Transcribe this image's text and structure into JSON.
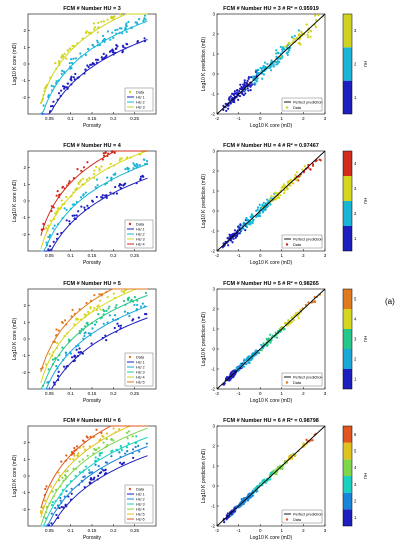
{
  "side_label": "(a)",
  "colors": {
    "hu3": [
      "#1f1fbf",
      "#19b5d6",
      "#cfd31f"
    ],
    "hu4": [
      "#1f1fbf",
      "#19b5d6",
      "#d6d61e",
      "#d42a1e"
    ],
    "hu5": [
      "#1f1fbf",
      "#1aa8d8",
      "#25c88a",
      "#d6d61e",
      "#e07a1e"
    ],
    "hu6": [
      "#1f1fbf",
      "#1a84d8",
      "#1ad0c0",
      "#7fd64a",
      "#e0c21e",
      "#e0561e"
    ]
  },
  "chart_data": [
    {
      "type": "scatter",
      "title": "FCM # Number HU = 3",
      "xlabel": "Porosity",
      "ylabel": "Log10 K core (mD)",
      "xlim": [
        0,
        0.3
      ],
      "ylim": [
        -3,
        3
      ],
      "xticks": [
        "0.05",
        "0.1",
        "0.15",
        "0.2",
        "0.25"
      ],
      "yticks": [
        "-2",
        "-1",
        "0",
        "1",
        "2"
      ],
      "legend": "bottom-right",
      "legend_entries": [
        "Data",
        "HU 1",
        "HU 2",
        "HU 3"
      ],
      "series": [
        {
          "name": "HU 1",
          "a": 1.2,
          "b": -1.1
        },
        {
          "name": "HU 2",
          "a": 1.2,
          "b": 0.0
        },
        {
          "name": "HU 3",
          "a": 1.2,
          "b": 0.95
        }
      ]
    },
    {
      "type": "scatter",
      "title": "FCM # Number HU = 3 #  R² = 0.95919",
      "xlabel": "Log10 K core (mD)",
      "ylabel": "Log10 K prediction (mD)",
      "xlim": [
        -2,
        3
      ],
      "ylim": [
        -2,
        3
      ],
      "xticks": [
        "-2",
        "-1",
        "0",
        "1",
        "2",
        "3"
      ],
      "yticks": [
        "-2",
        "-1",
        "0",
        "1",
        "2",
        "3"
      ],
      "legend": "bottom-right",
      "legend_entries": [
        "Perfect prediction",
        "Data"
      ],
      "colorbar_label": "HU",
      "colorbar_ticks": [
        "1",
        "2",
        "3"
      ],
      "noise": 0.45
    },
    {
      "type": "scatter",
      "title": "FCM # Number HU = 4",
      "xlabel": "Porosity",
      "ylabel": "Log10 K core (mD)",
      "xlim": [
        0,
        0.3
      ],
      "ylim": [
        -3,
        3
      ],
      "xticks": [
        "0.05",
        "0.1",
        "0.15",
        "0.2",
        "0.25"
      ],
      "yticks": [
        "-2",
        "-1",
        "0",
        "1",
        "2"
      ],
      "legend": "bottom-right",
      "legend_entries": [
        "Data",
        "HU 1",
        "HU 2",
        "HU 3",
        "HU 4"
      ],
      "series": [
        {
          "name": "HU 1",
          "a": 1.2,
          "b": -1.2
        },
        {
          "name": "HU 2",
          "a": 1.2,
          "b": -0.35
        },
        {
          "name": "HU 3",
          "a": 1.2,
          "b": 0.45
        },
        {
          "name": "HU 4",
          "a": 1.2,
          "b": 1.25
        }
      ]
    },
    {
      "type": "scatter",
      "title": "FCM # Number HU = 4 #  R² = 0.97467",
      "xlabel": "Log10 K core (mD)",
      "ylabel": "Log10 K prediction (mD)",
      "xlim": [
        -2,
        3
      ],
      "ylim": [
        -2,
        3
      ],
      "xticks": [
        "-2",
        "-1",
        "0",
        "1",
        "2",
        "3"
      ],
      "yticks": [
        "-2",
        "-1",
        "0",
        "1",
        "2",
        "3"
      ],
      "legend": "bottom-right",
      "legend_entries": [
        "Perfect prediction",
        "Data"
      ],
      "colorbar_label": "HU",
      "colorbar_ticks": [
        "1",
        "2",
        "3",
        "4"
      ],
      "noise": 0.3
    },
    {
      "type": "scatter",
      "title": "FCM # Number HU = 5",
      "xlabel": "Porosity",
      "ylabel": "Log10 K core (mD)",
      "xlim": [
        0,
        0.3
      ],
      "ylim": [
        -3,
        3
      ],
      "xticks": [
        "0.05",
        "0.1",
        "0.15",
        "0.2",
        "0.25"
      ],
      "yticks": [
        "-2",
        "-1",
        "0",
        "1",
        "2"
      ],
      "legend": "bottom-right",
      "legend_entries": [
        "Data",
        "HU 1",
        "HU 2",
        "HU 3",
        "HU 4",
        "HU 5"
      ],
      "series": [
        {
          "name": "HU 1",
          "a": 1.2,
          "b": -1.3
        },
        {
          "name": "HU 2",
          "a": 1.2,
          "b": -0.6
        },
        {
          "name": "HU 3",
          "a": 1.2,
          "b": 0.05
        },
        {
          "name": "HU 4",
          "a": 1.2,
          "b": 0.7
        },
        {
          "name": "HU 5",
          "a": 1.2,
          "b": 1.35
        }
      ]
    },
    {
      "type": "scatter",
      "title": "FCM # Number HU = 5 #  R² = 0.98265",
      "xlabel": "Log10 K core (mD)",
      "ylabel": "Log10 K prediction (mD)",
      "xlim": [
        -2,
        3
      ],
      "ylim": [
        -2,
        3
      ],
      "xticks": [
        "-2",
        "-1",
        "0",
        "1",
        "2",
        "3"
      ],
      "yticks": [
        "-2",
        "-1",
        "0",
        "1",
        "2",
        "3"
      ],
      "legend": "bottom-right",
      "legend_entries": [
        "Perfect prediction",
        "Data"
      ],
      "colorbar_label": "HU",
      "colorbar_ticks": [
        "1",
        "2",
        "3",
        "4",
        "5"
      ],
      "noise": 0.22
    },
    {
      "type": "scatter",
      "title": "FCM # Number HU = 6",
      "xlabel": "Porosity",
      "ylabel": "Log10 K core (mD)",
      "xlim": [
        0,
        0.3
      ],
      "ylim": [
        -3,
        3
      ],
      "xticks": [
        "0.05",
        "0.1",
        "0.15",
        "0.2",
        "0.25"
      ],
      "yticks": [
        "-2",
        "-1",
        "0",
        "1",
        "2"
      ],
      "legend": "bottom-right",
      "legend_entries": [
        "Data",
        "HU 1",
        "HU 2",
        "HU 3",
        "HU 4",
        "HU 5",
        "HU 6"
      ],
      "series": [
        {
          "name": "HU 1",
          "a": 1.2,
          "b": -1.35
        },
        {
          "name": "HU 2",
          "a": 1.2,
          "b": -0.8
        },
        {
          "name": "HU 3",
          "a": 1.2,
          "b": -0.25
        },
        {
          "name": "HU 4",
          "a": 1.2,
          "b": 0.3
        },
        {
          "name": "HU 5",
          "a": 1.2,
          "b": 0.85
        },
        {
          "name": "HU 6",
          "a": 1.2,
          "b": 1.4
        }
      ]
    },
    {
      "type": "scatter",
      "title": "FCM # Number HU = 6 #  R² = 0.98798",
      "xlabel": "Log10 K core (mD)",
      "ylabel": "Log10 K prediction (mD)",
      "xlim": [
        -2,
        3
      ],
      "ylim": [
        -2,
        3
      ],
      "xticks": [
        "-2",
        "-1",
        "0",
        "1",
        "2",
        "3"
      ],
      "yticks": [
        "-2",
        "-1",
        "0",
        "1",
        "2",
        "3"
      ],
      "legend": "bottom-right",
      "legend_entries": [
        "Perfect prediction",
        "Data"
      ],
      "colorbar_label": "HU",
      "colorbar_ticks": [
        "1",
        "2",
        "3",
        "4",
        "5",
        "6"
      ],
      "noise": 0.18
    }
  ]
}
